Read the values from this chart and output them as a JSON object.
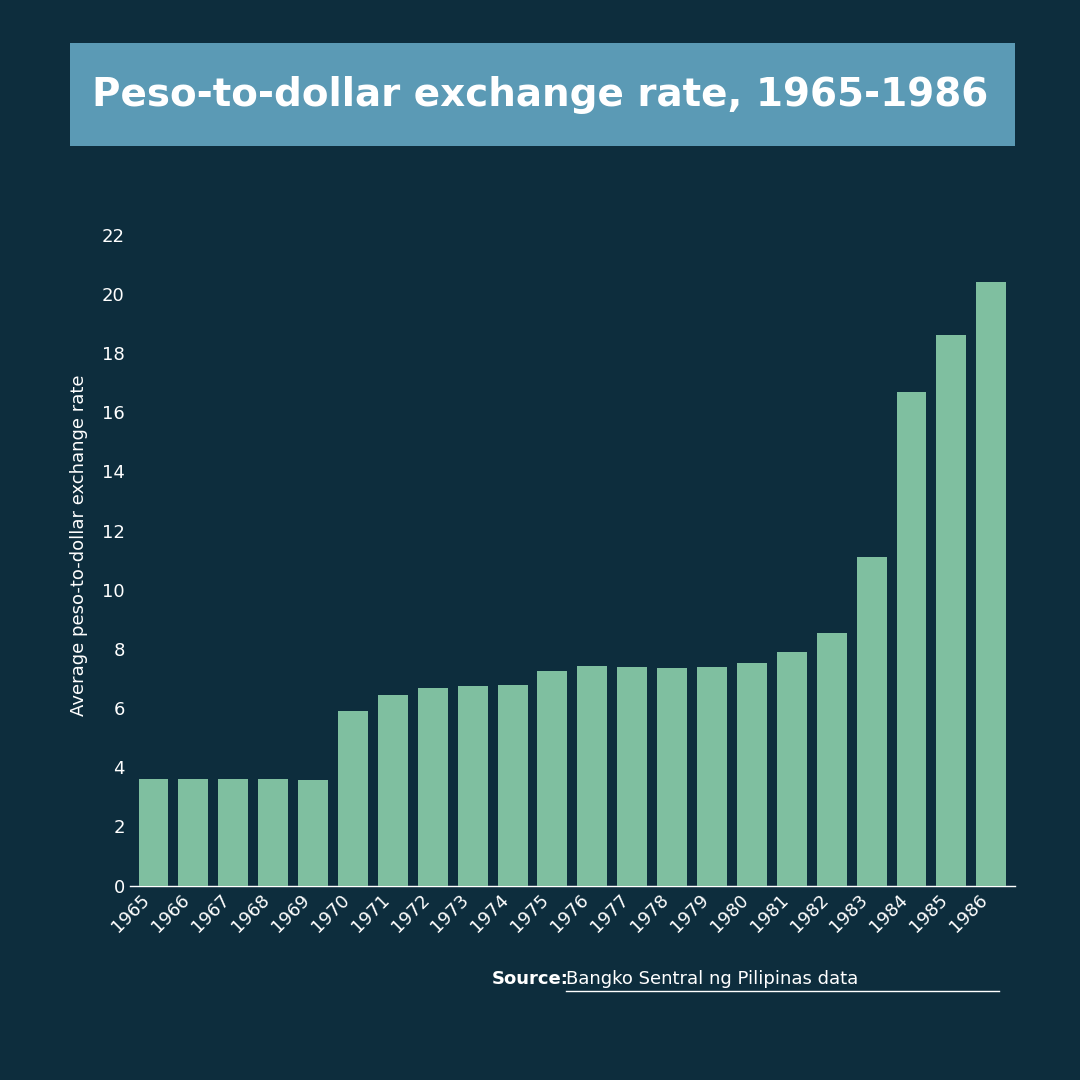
{
  "title": "Peso-to-dollar exchange rate, 1965-1986",
  "ylabel": "Average peso-to-dollar exchange rate",
  "source_bold": "Source:",
  "source_text": "Bangko Sentral ng Pilipinas data",
  "bg_color": "#0d2d3d",
  "header_color": "#5b9ab5",
  "bar_color": "#7fbfa0",
  "text_color": "#ffffff",
  "years": [
    1965,
    1966,
    1967,
    1968,
    1969,
    1970,
    1971,
    1972,
    1973,
    1974,
    1975,
    1976,
    1977,
    1978,
    1979,
    1980,
    1981,
    1982,
    1983,
    1984,
    1985,
    1986
  ],
  "values": [
    3.6,
    3.6,
    3.6,
    3.6,
    3.57,
    5.9,
    6.43,
    6.67,
    6.76,
    6.79,
    7.25,
    7.44,
    7.4,
    7.37,
    7.38,
    7.51,
    7.9,
    8.54,
    11.11,
    16.7,
    18.61,
    20.39
  ],
  "ylim": [
    0,
    23
  ],
  "yticks": [
    0,
    2,
    4,
    6,
    8,
    10,
    12,
    14,
    16,
    18,
    20,
    22
  ],
  "title_fontsize": 28,
  "ylabel_fontsize": 13,
  "tick_fontsize": 13,
  "source_fontsize": 13
}
